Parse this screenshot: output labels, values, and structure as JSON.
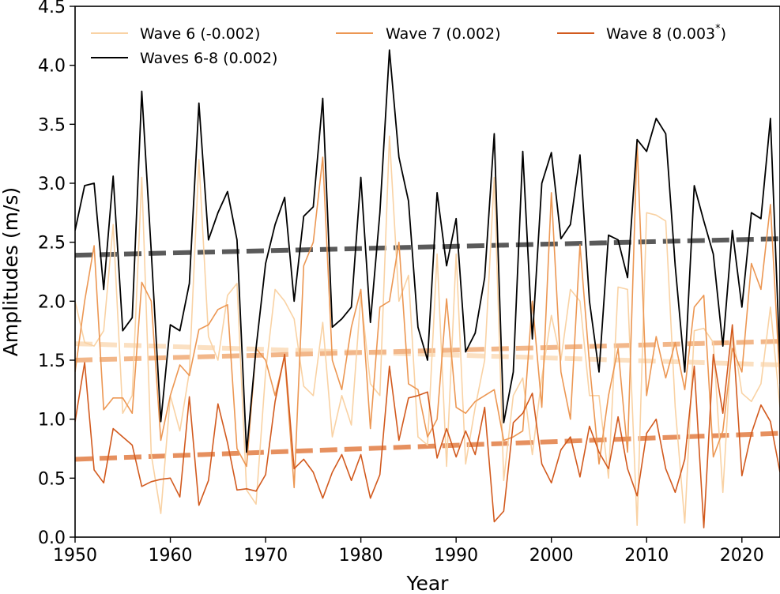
{
  "chart_data": {
    "type": "line",
    "xlabel": "Year",
    "ylabel": "Amplitudes (m/s)",
    "xlim": [
      1950,
      2024
    ],
    "ylim": [
      0.0,
      4.5
    ],
    "xticks": [
      "1950",
      "1960",
      "1970",
      "1980",
      "1990",
      "2000",
      "2010",
      "2020"
    ],
    "yticks": [
      "0.0",
      "0.5",
      "1.0",
      "1.5",
      "2.0",
      "2.5",
      "3.0",
      "3.5",
      "4.0",
      "4.5"
    ],
    "legend_position": "top",
    "x": [
      1950,
      1951,
      1952,
      1953,
      1954,
      1955,
      1956,
      1957,
      1958,
      1959,
      1960,
      1961,
      1962,
      1963,
      1964,
      1965,
      1966,
      1967,
      1968,
      1969,
      1970,
      1971,
      1972,
      1973,
      1974,
      1975,
      1976,
      1977,
      1978,
      1979,
      1980,
      1981,
      1982,
      1983,
      1984,
      1985,
      1986,
      1987,
      1988,
      1989,
      1990,
      1991,
      1992,
      1993,
      1994,
      1995,
      1996,
      1997,
      1998,
      1999,
      2000,
      2001,
      2002,
      2003,
      2004,
      2005,
      2006,
      2007,
      2008,
      2009,
      2010,
      2011,
      2012,
      2013,
      2014,
      2015,
      2016,
      2017,
      2018,
      2019,
      2020,
      2021,
      2022,
      2023,
      2024
    ],
    "series": [
      {
        "name": "Wave 6",
        "legend_label": "Wave 6 (-0.002)",
        "color": "#f9d2a4",
        "values": [
          2.0,
          1.65,
          1.62,
          1.75,
          2.65,
          1.05,
          1.2,
          3.05,
          0.7,
          0.2,
          1.2,
          0.9,
          1.4,
          3.2,
          1.7,
          1.5,
          2.05,
          2.15,
          0.4,
          0.28,
          1.4,
          2.1,
          2.0,
          1.85,
          1.28,
          1.2,
          1.82,
          0.85,
          1.2,
          0.95,
          2.05,
          1.3,
          1.2,
          3.4,
          2.0,
          2.22,
          0.85,
          0.78,
          2.4,
          0.6,
          2.4,
          0.62,
          1.1,
          1.5,
          3.05,
          0.48,
          1.2,
          1.35,
          0.7,
          1.35,
          1.88,
          1.5,
          2.1,
          2.0,
          1.2,
          1.2,
          0.5,
          2.12,
          2.1,
          0.1,
          2.75,
          2.73,
          2.68,
          1.1,
          0.12,
          1.75,
          1.77,
          1.65,
          0.38,
          1.75,
          1.22,
          1.15,
          1.3,
          1.95,
          1.1
        ]
      },
      {
        "name": "Wave 7",
        "legend_label": "Wave 7 (0.002)",
        "color": "#ec9753",
        "values": [
          1.4,
          2.0,
          2.47,
          1.08,
          1.18,
          1.18,
          1.05,
          2.16,
          2.0,
          0.82,
          1.2,
          1.46,
          1.37,
          1.76,
          1.8,
          1.93,
          1.97,
          0.75,
          0.6,
          1.6,
          1.5,
          1.2,
          1.53,
          0.42,
          2.3,
          2.5,
          3.22,
          1.5,
          1.25,
          1.78,
          2.1,
          0.92,
          1.95,
          2.0,
          2.5,
          1.3,
          1.25,
          0.85,
          1.0,
          2.02,
          1.1,
          1.05,
          1.15,
          1.2,
          1.25,
          0.82,
          0.85,
          0.9,
          2.0,
          1.1,
          2.92,
          1.4,
          1.0,
          2.48,
          1.47,
          0.62,
          1.2,
          1.6,
          0.72,
          3.35,
          1.2,
          1.7,
          1.35,
          1.65,
          1.25,
          1.95,
          2.05,
          0.68,
          0.9,
          1.6,
          1.4,
          2.32,
          2.1,
          2.82,
          1.3
        ]
      },
      {
        "name": "Wave 8",
        "legend_label": "Wave 8 (0.003",
        "legend_suffix": "*",
        "legend_close": ")",
        "color": "#d25a1e",
        "values": [
          0.98,
          1.48,
          0.57,
          0.46,
          0.92,
          0.85,
          0.78,
          0.43,
          0.47,
          0.49,
          0.5,
          0.34,
          1.19,
          0.27,
          0.48,
          1.13,
          0.8,
          0.4,
          0.41,
          0.39,
          0.53,
          1.15,
          1.55,
          0.58,
          0.66,
          0.55,
          0.33,
          0.55,
          0.7,
          0.48,
          0.7,
          0.33,
          0.53,
          1.45,
          0.82,
          1.18,
          1.2,
          1.23,
          0.67,
          0.92,
          0.68,
          0.9,
          0.7,
          1.1,
          0.13,
          0.22,
          0.97,
          1.05,
          1.22,
          0.62,
          0.46,
          0.74,
          0.85,
          0.51,
          0.94,
          0.72,
          0.58,
          1.02,
          0.58,
          0.35,
          0.88,
          1.0,
          0.58,
          0.38,
          0.66,
          1.45,
          0.08,
          1.55,
          1.05,
          1.8,
          0.52,
          0.88,
          1.12,
          0.98,
          0.55
        ]
      },
      {
        "name": "Waves 6-8",
        "legend_label": "Waves 6-8 (0.002)",
        "color": "#000000",
        "values": [
          2.6,
          2.98,
          3.0,
          2.1,
          3.06,
          1.75,
          1.86,
          3.78,
          2.42,
          0.98,
          1.8,
          1.75,
          2.15,
          3.68,
          2.52,
          2.75,
          2.93,
          2.52,
          0.72,
          1.6,
          2.32,
          2.65,
          2.88,
          2.0,
          2.72,
          2.8,
          3.72,
          1.78,
          1.85,
          1.95,
          3.05,
          1.82,
          2.75,
          4.13,
          3.22,
          2.85,
          1.78,
          1.5,
          2.92,
          2.3,
          2.7,
          1.57,
          1.73,
          2.2,
          3.42,
          0.97,
          1.4,
          3.27,
          1.68,
          3.0,
          3.26,
          2.53,
          2.65,
          3.24,
          2.0,
          1.4,
          2.56,
          2.52,
          2.2,
          3.37,
          3.27,
          3.55,
          3.42,
          2.3,
          1.4,
          2.98,
          2.68,
          2.4,
          1.62,
          2.6,
          1.95,
          2.75,
          2.7,
          3.55,
          1.47
        ]
      }
    ],
    "trend_lines": [
      {
        "name": "Waves 6-8 trend",
        "color": "#5a5a5a",
        "start": [
          1950,
          2.39
        ],
        "end": [
          2024,
          2.53
        ]
      },
      {
        "name": "Wave 6 trend",
        "color": "#fbe0c2",
        "start": [
          1950,
          1.64
        ],
        "end": [
          2024,
          1.46
        ]
      },
      {
        "name": "Wave 7 trend",
        "color": "#f2b78a",
        "start": [
          1950,
          1.5
        ],
        "end": [
          2024,
          1.66
        ]
      },
      {
        "name": "Wave 8 trend",
        "color": "#e6905f",
        "start": [
          1950,
          0.66
        ],
        "end": [
          2024,
          0.88
        ]
      }
    ]
  }
}
